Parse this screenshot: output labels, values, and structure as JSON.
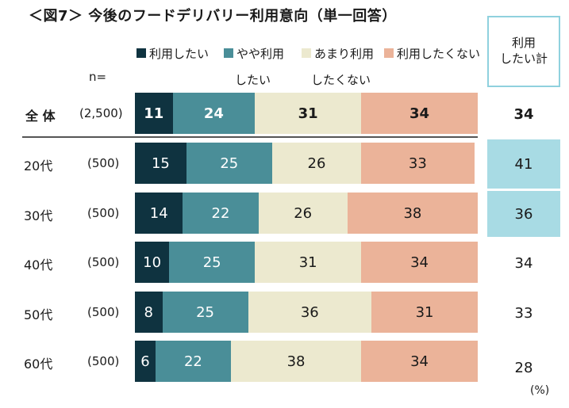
{
  "title": "＜図7＞ 今後のフードデリバリー利用意向（単一回答）",
  "n_label": "n=",
  "total_header": [
    "利用",
    "したい計"
  ],
  "unit": "(%)",
  "legend": [
    {
      "label": "利用したい",
      "sub": "",
      "color": "#0f3340"
    },
    {
      "label": "やや利用",
      "sub": "したい",
      "color": "#4a8e98"
    },
    {
      "label": "あまり利用",
      "sub": "したくない",
      "color": "#ece9cf"
    },
    {
      "label": "利用したくない",
      "sub": "",
      "color": "#ebb399"
    }
  ],
  "chart_data": {
    "type": "bar",
    "orientation": "horizontal",
    "stacked": true,
    "title": "＜図7＞ 今後のフードデリバリー利用意向（単一回答）",
    "categories": [
      "全 体",
      "20代",
      "30代",
      "40代",
      "50代",
      "60代"
    ],
    "n": [
      "(2,500)",
      "(500)",
      "(500)",
      "(500)",
      "(500)",
      "(500)"
    ],
    "series": [
      {
        "name": "利用したい",
        "values": [
          11,
          15,
          14,
          10,
          8,
          6
        ]
      },
      {
        "name": "やや利用したい",
        "values": [
          24,
          25,
          22,
          25,
          25,
          22
        ]
      },
      {
        "name": "あまり利用したくない",
        "values": [
          31,
          26,
          26,
          31,
          36,
          38
        ]
      },
      {
        "name": "利用したくない",
        "values": [
          34,
          33,
          38,
          34,
          31,
          34
        ]
      }
    ],
    "total_want": [
      34,
      41,
      36,
      34,
      33,
      28
    ],
    "highlight_total": [
      false,
      true,
      true,
      false,
      false,
      false
    ],
    "unit": "(%)"
  }
}
